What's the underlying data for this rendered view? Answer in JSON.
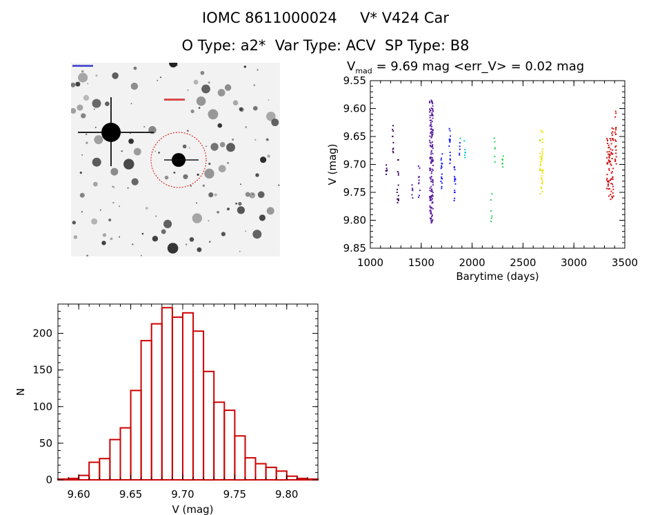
{
  "header": {
    "line1": "IOMC 8611000024     V* V424 Car",
    "line2": "O Type: a2*  Var Type: ACV  SP Type: B8"
  },
  "stats": {
    "vmag_symbol": "V",
    "vmag_sub": "mad",
    "rest": " = 9.69 mag <err_V> = 0.02 mag"
  },
  "thumbnail": {
    "alt": "sky-field image of target with red circle"
  },
  "chart_data": [
    {
      "type": "scatter",
      "title": "",
      "xlabel": "Barytime (days)",
      "ylabel": "V (mag)",
      "xlim": [
        1000,
        3500
      ],
      "ylim": [
        9.85,
        9.55
      ],
      "y_inverted": true,
      "xticks": [
        1000,
        1500,
        2000,
        2500,
        3000,
        3500
      ],
      "yticks": [
        9.55,
        9.6,
        9.65,
        9.7,
        9.75,
        9.8,
        9.85
      ],
      "ytick_labels": [
        "9.55",
        "9.60",
        "9.65",
        "9.70",
        "9.75",
        "9.80",
        "9.85"
      ],
      "colored_by_time": true,
      "color_scale": [
        "#3b0a5c",
        "#5a1f9e",
        "#1a1aff",
        "#00c8d8",
        "#20d050",
        "#a0e010",
        "#f0e000",
        "#f09000",
        "#d01010"
      ],
      "groups": [
        {
          "x": 1160,
          "ymin": 9.7,
          "ymax": 9.725,
          "n": 6
        },
        {
          "x": 1225,
          "ymin": 9.625,
          "ymax": 9.69,
          "n": 10
        },
        {
          "x": 1270,
          "ymin": 9.69,
          "ymax": 9.78,
          "n": 14
        },
        {
          "x": 1410,
          "ymin": 9.73,
          "ymax": 9.76,
          "n": 6
        },
        {
          "x": 1480,
          "ymin": 9.7,
          "ymax": 9.76,
          "n": 10
        },
        {
          "x": 1600,
          "ymin": 9.585,
          "ymax": 9.805,
          "n": 160
        },
        {
          "x": 1700,
          "ymin": 9.68,
          "ymax": 9.75,
          "n": 16
        },
        {
          "x": 1780,
          "ymin": 9.635,
          "ymax": 9.7,
          "n": 14
        },
        {
          "x": 1830,
          "ymin": 9.69,
          "ymax": 9.77,
          "n": 14
        },
        {
          "x": 1880,
          "ymin": 9.65,
          "ymax": 9.69,
          "n": 6
        },
        {
          "x": 1930,
          "ymin": 9.65,
          "ymax": 9.69,
          "n": 6
        },
        {
          "x": 2190,
          "ymin": 9.74,
          "ymax": 9.81,
          "n": 6
        },
        {
          "x": 2220,
          "ymin": 9.65,
          "ymax": 9.71,
          "n": 6
        },
        {
          "x": 2300,
          "ymin": 9.685,
          "ymax": 9.705,
          "n": 6
        },
        {
          "x": 2680,
          "ymin": 9.635,
          "ymax": 9.755,
          "n": 40
        },
        {
          "x": 3340,
          "ymin": 9.65,
          "ymax": 9.76,
          "n": 40
        },
        {
          "x": 3375,
          "ymin": 9.63,
          "ymax": 9.775,
          "n": 40
        },
        {
          "x": 3410,
          "ymin": 9.6,
          "ymax": 9.7,
          "n": 20
        }
      ]
    },
    {
      "type": "histogram",
      "title": "",
      "xlabel": "V (mag)",
      "ylabel": "N",
      "xlim": [
        9.58,
        9.83
      ],
      "ylim": [
        0,
        240
      ],
      "xticks": [
        9.6,
        9.65,
        9.7,
        9.75,
        9.8
      ],
      "xtick_labels": [
        "9.60",
        "9.65",
        "9.70",
        "9.75",
        "9.80"
      ],
      "yticks": [
        0,
        50,
        100,
        150,
        200
      ],
      "yticks_labels": [
        "0",
        "50",
        "100",
        "150",
        "200"
      ],
      "bin_start": 9.58,
      "bin_width": 0.01,
      "counts": [
        1,
        2,
        6,
        24,
        29,
        55,
        71,
        122,
        190,
        213,
        235,
        222,
        228,
        203,
        148,
        106,
        95,
        60,
        30,
        22,
        17,
        12,
        5,
        2,
        1
      ],
      "bar_color": "#cc0000"
    }
  ]
}
